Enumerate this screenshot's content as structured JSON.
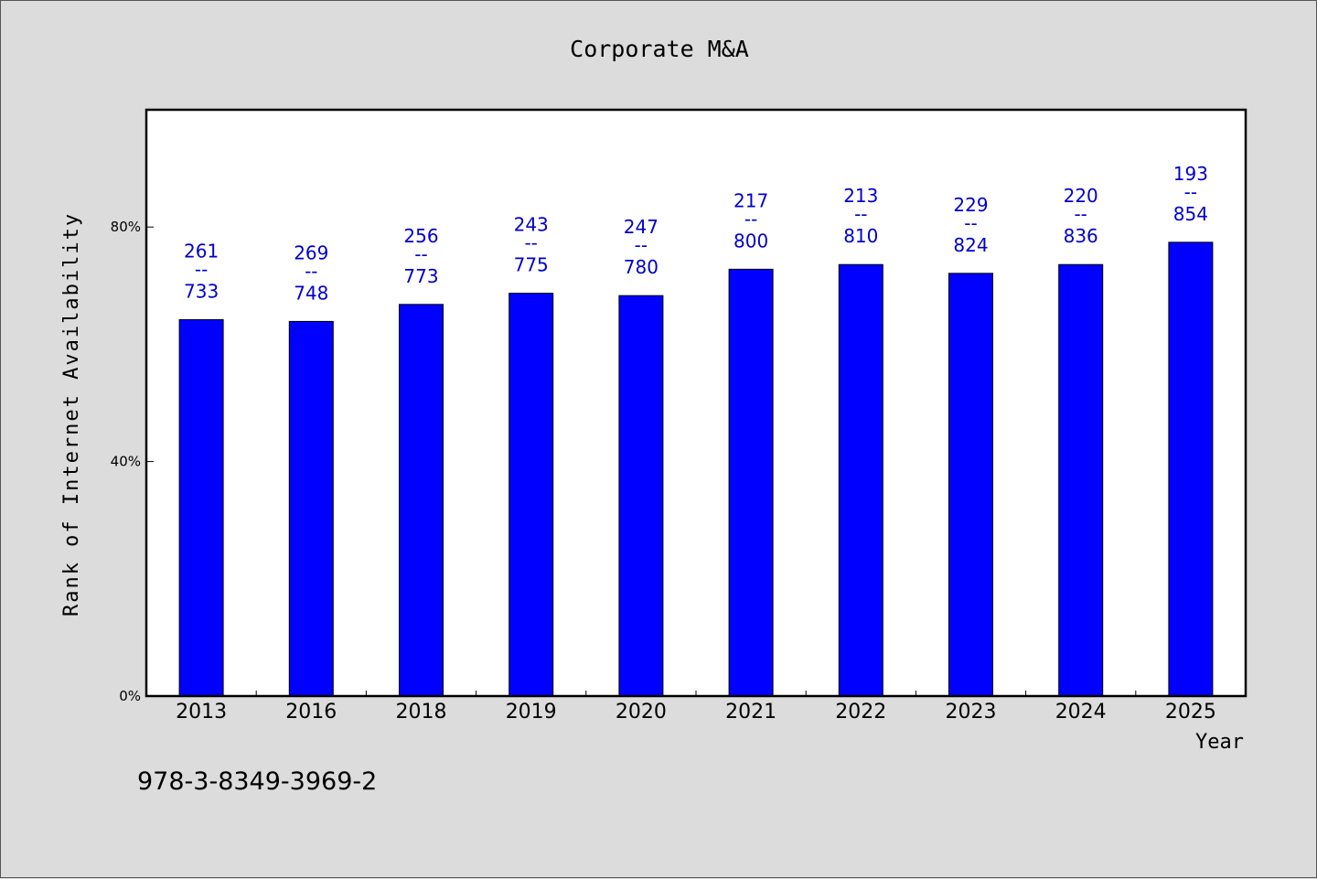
{
  "chart_data": {
    "type": "bar",
    "title": "Corporate M&A",
    "xlabel": "Year",
    "ylabel": "Rank of Internet Availability",
    "categories": [
      "2013",
      "2016",
      "2018",
      "2019",
      "2020",
      "2021",
      "2022",
      "2023",
      "2024",
      "2025"
    ],
    "values": [
      64.2,
      63.9,
      66.8,
      68.7,
      68.3,
      72.8,
      73.6,
      72.1,
      73.6,
      77.4
    ],
    "labels": [
      {
        "top": "261",
        "sep": "--",
        "bottom": "733"
      },
      {
        "top": "269",
        "sep": "--",
        "bottom": "748"
      },
      {
        "top": "256",
        "sep": "--",
        "bottom": "773"
      },
      {
        "top": "243",
        "sep": "--",
        "bottom": "775"
      },
      {
        "top": "247",
        "sep": "--",
        "bottom": "780"
      },
      {
        "top": "217",
        "sep": "--",
        "bottom": "800"
      },
      {
        "top": "213",
        "sep": "--",
        "bottom": "810"
      },
      {
        "top": "229",
        "sep": "--",
        "bottom": "824"
      },
      {
        "top": "220",
        "sep": "--",
        "bottom": "836"
      },
      {
        "top": "193",
        "sep": "--",
        "bottom": "854"
      }
    ],
    "ylim": [
      0,
      100
    ],
    "yticks": [
      0,
      40,
      80
    ],
    "ytick_labels": [
      "0%",
      "40%",
      "80%"
    ],
    "grid": false,
    "colors": {
      "bar": "#0000ff",
      "label": "#0000cc",
      "background": "#dcdcdc",
      "plot": "#ffffff"
    }
  },
  "footer": {
    "code": "978-3-8349-3969-2"
  }
}
